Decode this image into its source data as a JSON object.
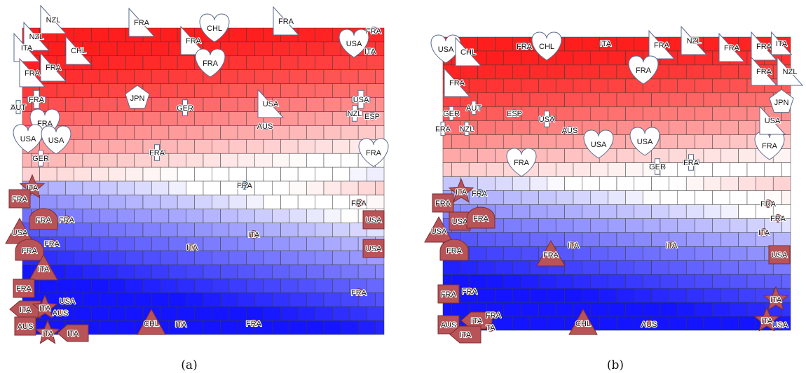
{
  "panels": [
    {
      "id": "a",
      "caption": "(a)",
      "colors": {
        "top": "#ff1e1e",
        "mid": "#ffffff",
        "bottom": "#1414ff"
      },
      "marks": [
        {
          "label": "NZL",
          "shape": "tri",
          "kind": "white"
        },
        {
          "label": "NZL",
          "shape": "tri",
          "kind": "white"
        },
        {
          "label": "ITA",
          "shape": "tri",
          "kind": "white"
        },
        {
          "label": "CHL",
          "shape": "tri",
          "kind": "white"
        },
        {
          "label": "FRA",
          "shape": "tri",
          "kind": "white"
        },
        {
          "label": "FRA",
          "shape": "tri",
          "kind": "white"
        },
        {
          "label": "FRA",
          "shape": "tri",
          "kind": "white"
        },
        {
          "label": "FRA",
          "shape": "tri",
          "kind": "white"
        },
        {
          "label": "CHL",
          "shape": "heart",
          "kind": "white"
        },
        {
          "label": "FRA",
          "shape": "heart",
          "kind": "white"
        },
        {
          "label": "FRA",
          "shape": "tri",
          "kind": "white"
        },
        {
          "label": "USA",
          "shape": "heart",
          "kind": "white"
        },
        {
          "label": "FRA",
          "shape": "circ",
          "kind": "white"
        },
        {
          "label": "ITA",
          "shape": "circ",
          "kind": "white"
        },
        {
          "label": "FRA",
          "shape": "cross",
          "kind": "white"
        },
        {
          "label": "AUT",
          "shape": "cross",
          "kind": "white"
        },
        {
          "label": "JPN",
          "shape": "pent",
          "kind": "white"
        },
        {
          "label": "GER",
          "shape": "cross",
          "kind": "white"
        },
        {
          "label": "USA",
          "shape": "tri",
          "kind": "white"
        },
        {
          "label": "AUS",
          "shape": "circ",
          "kind": "white"
        },
        {
          "label": "USA",
          "shape": "cross",
          "kind": "white"
        },
        {
          "label": "NZL",
          "shape": "cross",
          "kind": "white"
        },
        {
          "label": "ESP",
          "shape": "circ",
          "kind": "white"
        },
        {
          "label": "FRA",
          "shape": "heart",
          "kind": "white"
        },
        {
          "label": "USA",
          "shape": "heart",
          "kind": "white"
        },
        {
          "label": "USA",
          "shape": "heart",
          "kind": "white"
        },
        {
          "label": "GER",
          "shape": "cross",
          "kind": "white"
        },
        {
          "label": "FRA",
          "shape": "cross",
          "kind": "white"
        },
        {
          "label": "FRA",
          "shape": "heart",
          "kind": "white"
        },
        {
          "label": "FRA",
          "shape": "circ",
          "kind": "blue"
        },
        {
          "label": "ITA",
          "shape": "star",
          "kind": "red"
        },
        {
          "label": "FRA",
          "shape": "sq",
          "kind": "red"
        },
        {
          "label": "FRA",
          "shape": "dome",
          "kind": "red"
        },
        {
          "label": "FRA",
          "shape": "circ",
          "kind": "red"
        },
        {
          "label": "USA",
          "shape": "tri",
          "kind": "red"
        },
        {
          "label": "FRA",
          "shape": "dome",
          "kind": "red"
        },
        {
          "label": "FRA",
          "shape": "circ",
          "kind": "red"
        },
        {
          "label": "ITA",
          "shape": "tri",
          "kind": "red"
        },
        {
          "label": "FRA",
          "shape": "sq",
          "kind": "red"
        },
        {
          "label": "ITA",
          "shape": "diam",
          "kind": "red"
        },
        {
          "label": "ITA",
          "shape": "star",
          "kind": "red"
        },
        {
          "label": "USA",
          "shape": "circ",
          "kind": "red"
        },
        {
          "label": "AUS",
          "shape": "circ",
          "kind": "red"
        },
        {
          "label": "AUS",
          "shape": "sq",
          "kind": "red"
        },
        {
          "label": "ITA",
          "shape": "star",
          "kind": "red"
        },
        {
          "label": "ITA",
          "shape": "diam",
          "kind": "red"
        },
        {
          "label": "CHL",
          "shape": "tri",
          "kind": "red"
        },
        {
          "label": "ITA",
          "shape": "circ",
          "kind": "red"
        },
        {
          "label": "FRA",
          "shape": "circ",
          "kind": "red"
        },
        {
          "label": "ITA",
          "shape": "circ",
          "kind": "red"
        },
        {
          "label": "ITA",
          "shape": "circ",
          "kind": "red"
        },
        {
          "label": "FRA",
          "shape": "circ",
          "kind": "red"
        },
        {
          "label": "USA",
          "shape": "sq",
          "kind": "red"
        },
        {
          "label": "USA",
          "shape": "sq",
          "kind": "red"
        },
        {
          "label": "FRA",
          "shape": "circ",
          "kind": "red"
        }
      ]
    },
    {
      "id": "b",
      "caption": "(b)",
      "colors": {
        "top": "#ff1e1e",
        "mid": "#ffffff",
        "bottom": "#1414ff"
      },
      "marks": [
        {
          "label": "USA",
          "shape": "heart",
          "kind": "white"
        },
        {
          "label": "CHL",
          "shape": "tri",
          "kind": "white"
        },
        {
          "label": "FRA",
          "shape": "circ",
          "kind": "white"
        },
        {
          "label": "CHL",
          "shape": "heart",
          "kind": "white"
        },
        {
          "label": "ITA",
          "shape": "circ",
          "kind": "white"
        },
        {
          "label": "FRA",
          "shape": "tri",
          "kind": "white"
        },
        {
          "label": "NZL",
          "shape": "tri",
          "kind": "white"
        },
        {
          "label": "FRA",
          "shape": "tri",
          "kind": "white"
        },
        {
          "label": "FRA",
          "shape": "tri",
          "kind": "white"
        },
        {
          "label": "ITA",
          "shape": "tri",
          "kind": "white"
        },
        {
          "label": "FRA",
          "shape": "tri",
          "kind": "white"
        },
        {
          "label": "NZL",
          "shape": "tri",
          "kind": "white"
        },
        {
          "label": "FRA",
          "shape": "heart",
          "kind": "white"
        },
        {
          "label": "FRA",
          "shape": "tri",
          "kind": "white"
        },
        {
          "label": "JPN",
          "shape": "pent",
          "kind": "white"
        },
        {
          "label": "GER",
          "shape": "cross",
          "kind": "white"
        },
        {
          "label": "AUT",
          "shape": "cross",
          "kind": "white"
        },
        {
          "label": "ESP",
          "shape": "circ",
          "kind": "white"
        },
        {
          "label": "USA",
          "shape": "cross",
          "kind": "white"
        },
        {
          "label": "AUS",
          "shape": "circ",
          "kind": "white"
        },
        {
          "label": "FRA",
          "shape": "cross",
          "kind": "white"
        },
        {
          "label": "NZL",
          "shape": "cross",
          "kind": "white"
        },
        {
          "label": "USA",
          "shape": "heart",
          "kind": "white"
        },
        {
          "label": "USA",
          "shape": "heart",
          "kind": "white"
        },
        {
          "label": "FRA",
          "shape": "heart",
          "kind": "white"
        },
        {
          "label": "USA",
          "shape": "tri",
          "kind": "white"
        },
        {
          "label": "GER",
          "shape": "cross",
          "kind": "white"
        },
        {
          "label": "FRA",
          "shape": "cross",
          "kind": "white"
        },
        {
          "label": "FRA",
          "shape": "heart",
          "kind": "white"
        },
        {
          "label": "ITA",
          "shape": "star",
          "kind": "red"
        },
        {
          "label": "FRA",
          "shape": "circ",
          "kind": "blue"
        },
        {
          "label": "FRA",
          "shape": "sq",
          "kind": "red"
        },
        {
          "label": "USA",
          "shape": "sq",
          "kind": "red"
        },
        {
          "label": "FRA",
          "shape": "dome",
          "kind": "red"
        },
        {
          "label": "USA",
          "shape": "tri",
          "kind": "red"
        },
        {
          "label": "FRA",
          "shape": "dome",
          "kind": "red"
        },
        {
          "label": "FRA",
          "shape": "tri",
          "kind": "red"
        },
        {
          "label": "ITA",
          "shape": "circ",
          "kind": "red"
        },
        {
          "label": "ITA",
          "shape": "circ",
          "kind": "red"
        },
        {
          "label": "FRA",
          "shape": "sq",
          "kind": "red"
        },
        {
          "label": "FRA",
          "shape": "circ",
          "kind": "red"
        },
        {
          "label": "ITA",
          "shape": "diam",
          "kind": "red"
        },
        {
          "label": "FRA",
          "shape": "circ",
          "kind": "red"
        },
        {
          "label": "AUS",
          "shape": "sq",
          "kind": "red"
        },
        {
          "label": "TA",
          "shape": "circ",
          "kind": "red"
        },
        {
          "label": "ITA",
          "shape": "diam",
          "kind": "red"
        },
        {
          "label": "CHL",
          "shape": "tri",
          "kind": "red"
        },
        {
          "label": "AUS",
          "shape": "circ",
          "kind": "red"
        },
        {
          "label": "FRA",
          "shape": "circ",
          "kind": "red"
        },
        {
          "label": "FRA",
          "shape": "circ",
          "kind": "red"
        },
        {
          "label": "ITA",
          "shape": "circ",
          "kind": "red"
        },
        {
          "label": "USA",
          "shape": "sq",
          "kind": "red"
        },
        {
          "label": "ITA",
          "shape": "star",
          "kind": "red"
        },
        {
          "label": "ITA",
          "shape": "star",
          "kind": "red"
        },
        {
          "label": "USA",
          "shape": "circ",
          "kind": "red"
        }
      ]
    }
  ]
}
